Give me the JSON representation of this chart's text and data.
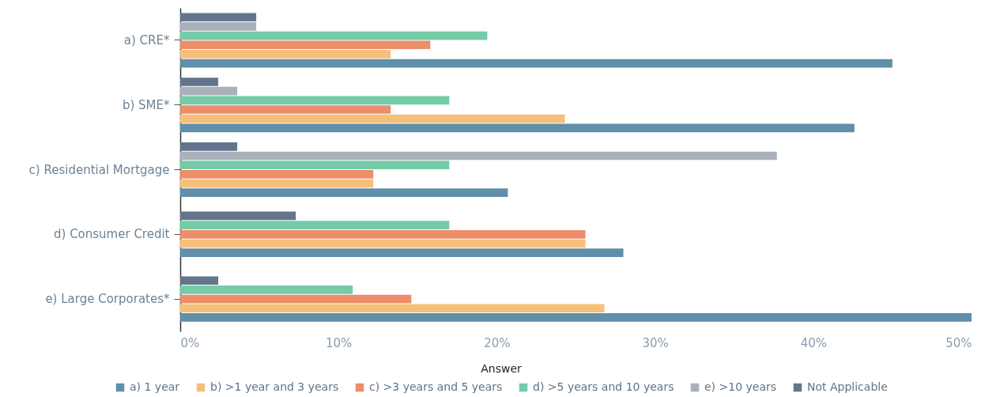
{
  "chart_data": {
    "type": "bar",
    "orientation": "horizontal",
    "categories": [
      "a) CRE*",
      "b) SME*",
      "c) Residential Mortgage",
      "d) Consumer Credit",
      "e) Large Corporates*"
    ],
    "series": [
      {
        "name": "a) 1 year",
        "color": "#5f8fa9",
        "values": [
          45.0,
          42.6,
          20.7,
          28.0,
          50.0
        ]
      },
      {
        "name": "b) >1 year and 3 years",
        "color": "#f6bf7a",
        "values": [
          13.3,
          24.3,
          12.2,
          25.6,
          26.8
        ]
      },
      {
        "name": "c) >3 years and 5 years",
        "color": "#eb8e69",
        "values": [
          15.8,
          13.3,
          12.2,
          25.6,
          14.6
        ]
      },
      {
        "name": "d) >5 years and 10 years",
        "color": "#75cba7",
        "values": [
          19.4,
          17.0,
          17.0,
          17.0,
          10.9
        ]
      },
      {
        "name": "e) >10 years",
        "color": "#a9b0ba",
        "values": [
          4.8,
          3.6,
          37.7,
          null,
          null
        ]
      },
      {
        "name": "Not Applicable",
        "color": "#63758c",
        "values": [
          4.8,
          2.4,
          3.6,
          7.3,
          2.4
        ]
      }
    ],
    "xlim": [
      0,
      50
    ],
    "xticks": [
      {
        "value": 0,
        "label": "0%"
      },
      {
        "value": 10,
        "label": "10%"
      },
      {
        "value": 20,
        "label": "20%"
      },
      {
        "value": 30,
        "label": "30%"
      },
      {
        "value": 40,
        "label": "40%"
      },
      {
        "value": 50,
        "label": "50%"
      }
    ],
    "legend": "bottom",
    "legend_title": "Answer"
  }
}
